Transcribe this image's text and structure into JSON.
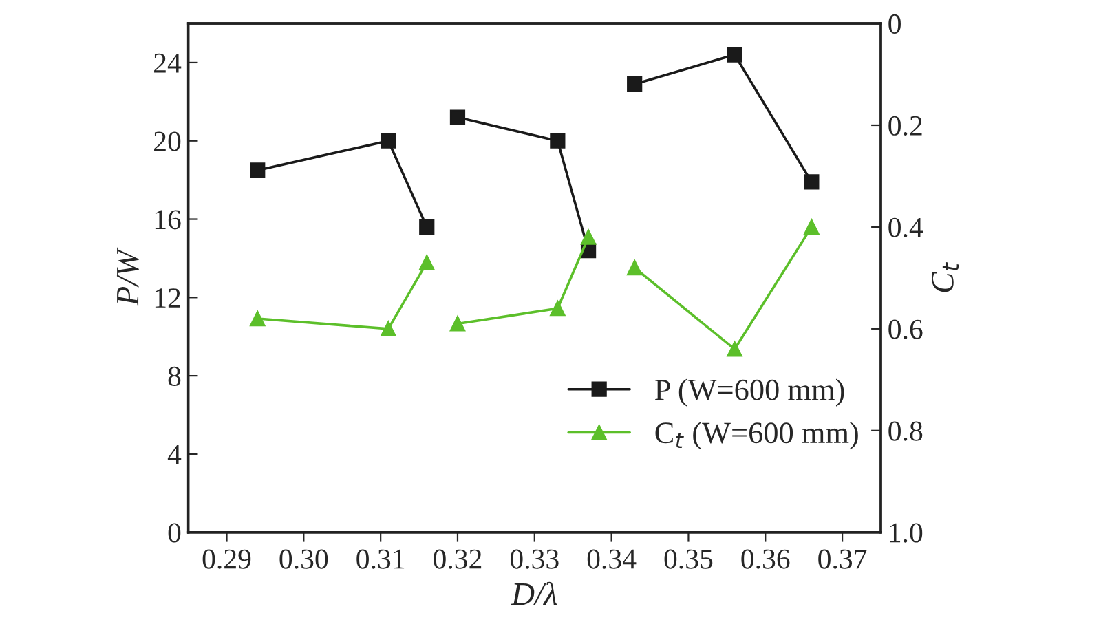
{
  "chart_data": {
    "type": "line",
    "xlabel": "D/λ",
    "ylabel": "P/W",
    "y2label": "C$_{t}$",
    "x": [
      0.294,
      0.311,
      0.316,
      null,
      0.32,
      0.333,
      0.337,
      null,
      0.343,
      0.356,
      0.366
    ],
    "series": [
      {
        "name": "P (W=600 mm)",
        "color": "#1a1a1a",
        "marker": "square",
        "values": [
          18.5,
          20.0,
          15.6,
          null,
          21.2,
          20.0,
          14.4,
          null,
          22.9,
          24.4,
          17.9
        ]
      },
      {
        "name": "C$_{t}$ (W=600 mm)",
        "color": "#5cbf2a",
        "marker": "triangle",
        "axis": "y2",
        "values": [
          0.58,
          0.6,
          0.47,
          null,
          0.59,
          0.56,
          0.42,
          null,
          0.48,
          0.64,
          0.4
        ]
      }
    ],
    "xlim": [
      0.285,
      0.375
    ],
    "xticks": [
      {
        "value": 0.29,
        "label": "0.29"
      },
      {
        "value": 0.3,
        "label": "0.30"
      },
      {
        "value": 0.31,
        "label": "0.31"
      },
      {
        "value": 0.32,
        "label": "0.32"
      },
      {
        "value": 0.33,
        "label": "0.33"
      },
      {
        "value": 0.34,
        "label": "0.34"
      },
      {
        "value": 0.35,
        "label": "0.35"
      },
      {
        "value": 0.36,
        "label": "0.36"
      },
      {
        "value": 0.37,
        "label": "0.37"
      }
    ],
    "ylim": [
      0,
      26
    ],
    "yticks": [
      0,
      4,
      8,
      12,
      16,
      20,
      24
    ],
    "y2lim": [
      1.0,
      0
    ],
    "y2ticks": [
      0,
      0.2,
      0.4,
      0.6,
      0.8,
      {
        "value": 1.0,
        "label": "1.0"
      }
    ],
    "grid": false,
    "legend": "bottom right",
    "line_style": "solid"
  }
}
